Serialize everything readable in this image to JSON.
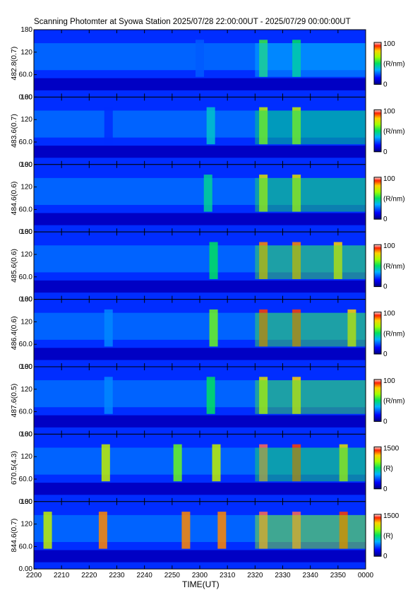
{
  "title": "Scanning Photomter at Syowa Station 2025/07/28 22:00:00UT - 2025/07/29 00:00:00UT",
  "chart_data": {
    "type": "heatmap",
    "xlabel": "TIME(UT)",
    "x_ticks": [
      "2200",
      "2210",
      "2220",
      "2230",
      "2240",
      "2250",
      "2300",
      "2310",
      "2320",
      "2330",
      "2340",
      "2350",
      "0000"
    ],
    "y_ticks": [
      "0.00",
      "60.0",
      "120",
      "180"
    ],
    "ylim": [
      0,
      180
    ],
    "panels": [
      {
        "ylabel": "482.8(0.7)",
        "cbar_max": "100",
        "cbar_min": "0",
        "cbar_unit": "(R/nm)",
        "events": [
          [
            2300,
            0.25
          ],
          [
            2323,
            0.55
          ],
          [
            2335,
            0.5
          ]
        ]
      },
      {
        "ylabel": "483.6(0.7)",
        "cbar_max": "100",
        "cbar_min": "0",
        "cbar_unit": "(R/nm)",
        "events": [
          [
            2227,
            0.2
          ],
          [
            2304,
            0.4
          ],
          [
            2323,
            0.7
          ],
          [
            2335,
            0.7
          ]
        ]
      },
      {
        "ylabel": "484.6(0.6)",
        "cbar_max": "100",
        "cbar_min": "0",
        "cbar_unit": "(R/nm)",
        "events": [
          [
            2303,
            0.45
          ],
          [
            2323,
            0.75
          ],
          [
            2335,
            0.75
          ]
        ]
      },
      {
        "ylabel": "485.6(0.6)",
        "cbar_max": "100",
        "cbar_min": "0",
        "cbar_unit": "(R/nm)",
        "events": [
          [
            2305,
            0.5
          ],
          [
            2323,
            0.85
          ],
          [
            2335,
            0.85
          ],
          [
            2350,
            0.8
          ]
        ]
      },
      {
        "ylabel": "486.4(0.6)",
        "cbar_max": "100",
        "cbar_min": "0",
        "cbar_unit": "(R/nm)",
        "events": [
          [
            2227,
            0.3
          ],
          [
            2305,
            0.6
          ],
          [
            2323,
            0.9
          ],
          [
            2335,
            0.9
          ],
          [
            2355,
            0.8
          ]
        ]
      },
      {
        "ylabel": "487.6(0.5)",
        "cbar_max": "100",
        "cbar_min": "0",
        "cbar_unit": "(R/nm)",
        "events": [
          [
            2227,
            0.3
          ],
          [
            2304,
            0.5
          ],
          [
            2323,
            0.75
          ],
          [
            2335,
            0.8
          ]
        ]
      },
      {
        "ylabel": "670.5(4.3)",
        "cbar_max": "1500",
        "cbar_min": "0",
        "cbar_unit": "(R)",
        "events": [
          [
            2226,
            0.7
          ],
          [
            2252,
            0.6
          ],
          [
            2306,
            0.7
          ],
          [
            2323,
            0.95
          ],
          [
            2335,
            0.9
          ],
          [
            2352,
            0.75
          ]
        ]
      },
      {
        "ylabel": "844.6(0.7)",
        "cbar_max": "1500",
        "cbar_min": "0",
        "cbar_unit": "(R)",
        "events": [
          [
            2205,
            0.7
          ],
          [
            2225,
            0.85
          ],
          [
            2255,
            0.85
          ],
          [
            2308,
            0.85
          ],
          [
            2323,
            0.95
          ],
          [
            2335,
            0.95
          ],
          [
            2352,
            0.9
          ]
        ]
      }
    ]
  }
}
